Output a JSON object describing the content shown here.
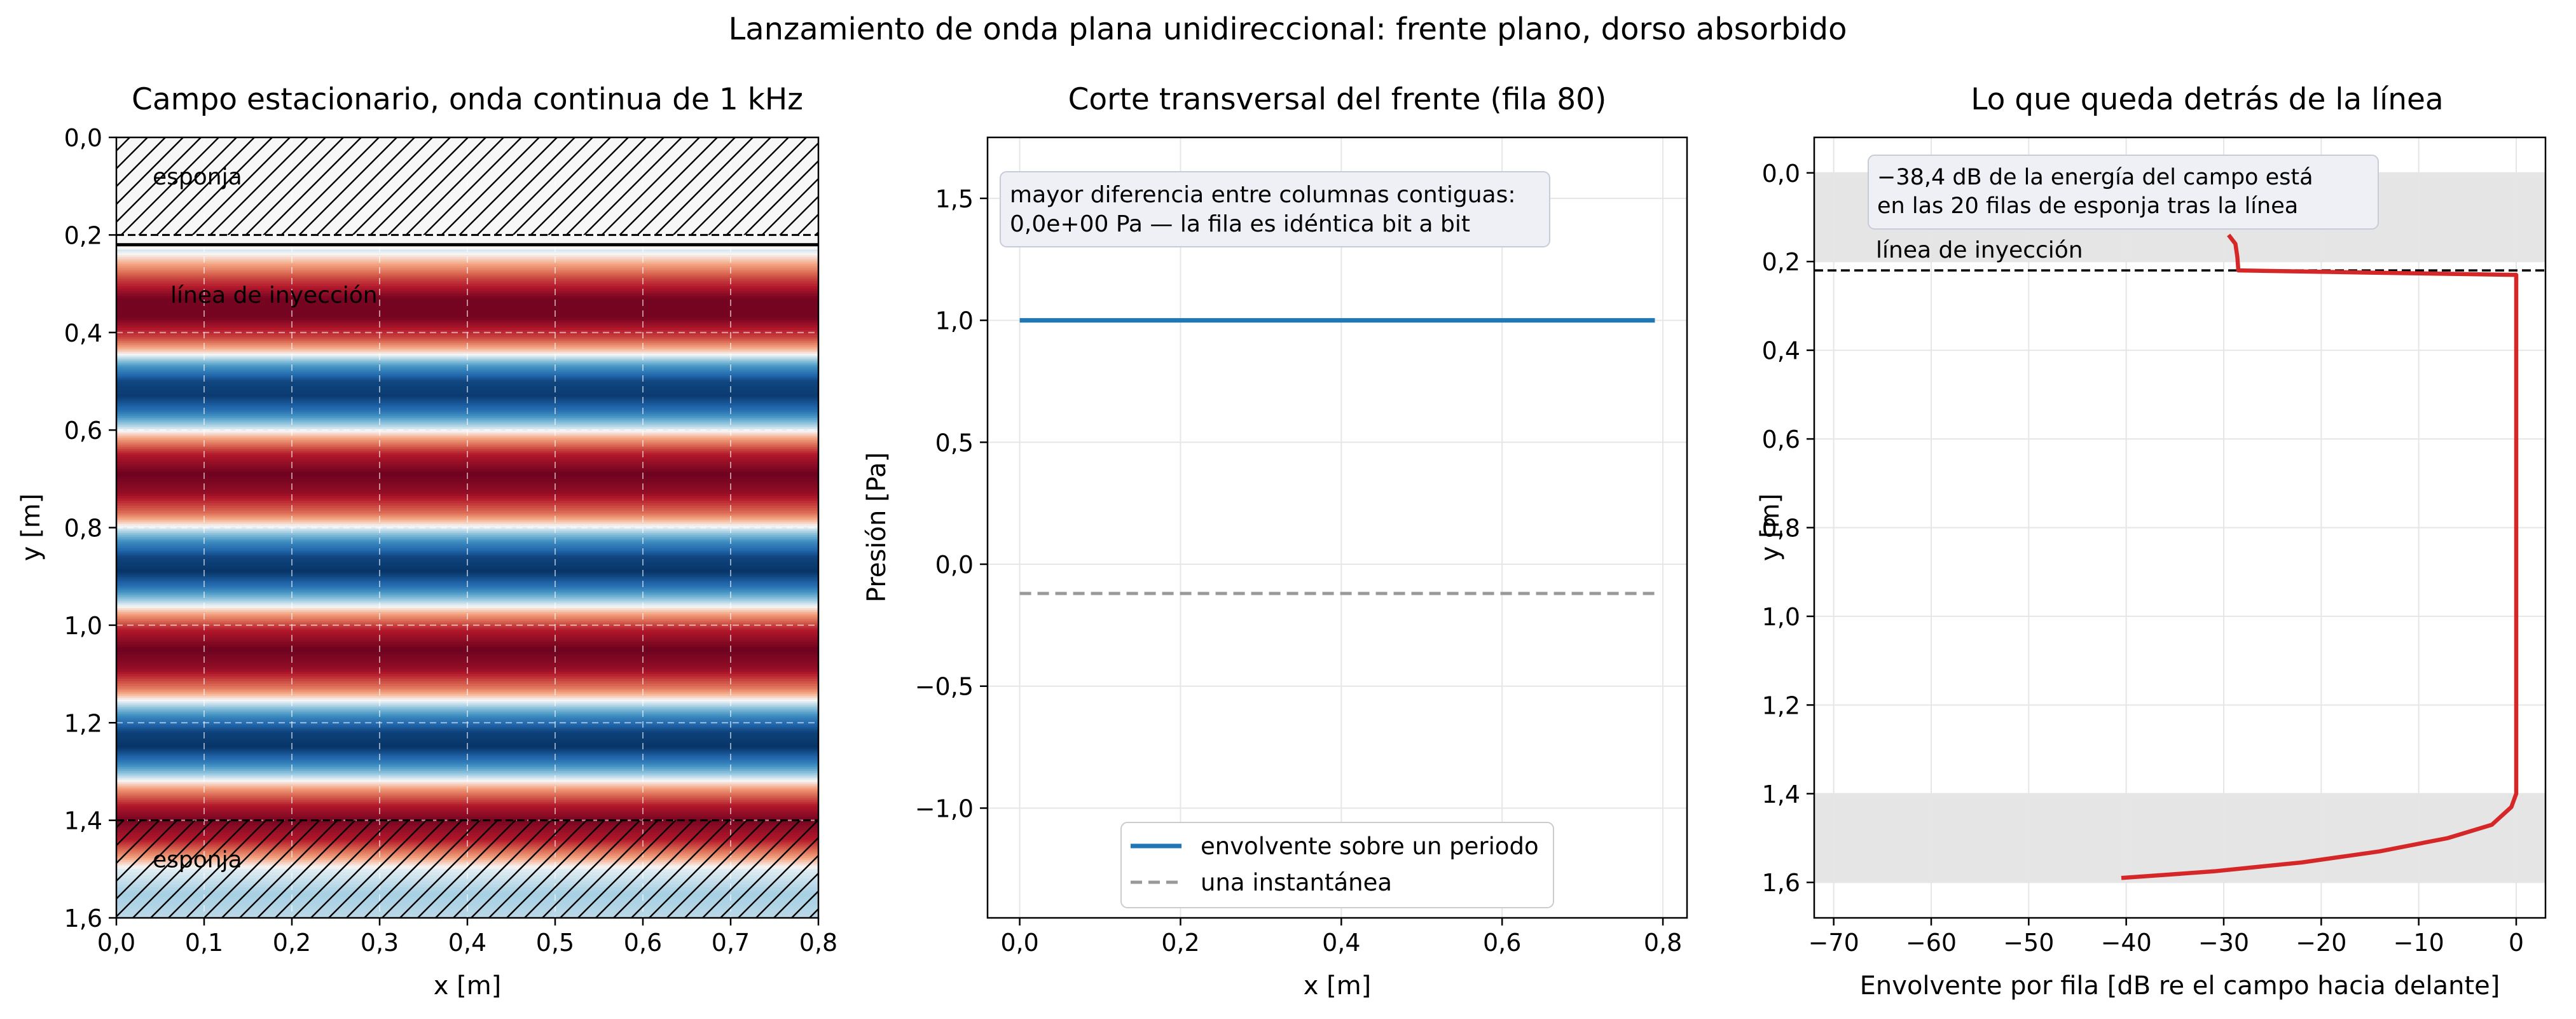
{
  "figure": {
    "suptitle": "Lanzamiento de onda plana unidireccional: frente plano, dorso absorbido"
  },
  "chart_data": [
    {
      "type": "heatmap",
      "title": "Campo estacionario, onda continua de 1 kHz",
      "xlabel": "x [m]",
      "ylabel": "y [m]",
      "xlim": [
        0.0,
        0.8
      ],
      "ylim": [
        1.6,
        0.0
      ],
      "x_ticks": [
        "0,0",
        "0,1",
        "0,2",
        "0,3",
        "0,4",
        "0,5",
        "0,6",
        "0,7",
        "0,8"
      ],
      "y_ticks": [
        "0,0",
        "0,2",
        "0,4",
        "0,6",
        "0,8",
        "1,0",
        "1,2",
        "1,4",
        "1,6"
      ],
      "grid": true,
      "colormap": "RdBu",
      "field_profile": [
        {
          "y": 0.23,
          "v": -0.1
        },
        {
          "y": 0.26,
          "v": 0.25
        },
        {
          "y": 0.29,
          "v": 0.6
        },
        {
          "y": 0.33,
          "v": 0.95
        },
        {
          "y": 0.37,
          "v": 0.95
        },
        {
          "y": 0.41,
          "v": 0.6
        },
        {
          "y": 0.44,
          "v": 0.1
        },
        {
          "y": 0.47,
          "v": -0.5
        },
        {
          "y": 0.5,
          "v": -0.9
        },
        {
          "y": 0.53,
          "v": -0.95
        },
        {
          "y": 0.56,
          "v": -0.7
        },
        {
          "y": 0.59,
          "v": -0.2
        },
        {
          "y": 0.62,
          "v": 0.3
        },
        {
          "y": 0.65,
          "v": 0.75
        },
        {
          "y": 0.69,
          "v": 0.98
        },
        {
          "y": 0.73,
          "v": 0.85
        },
        {
          "y": 0.77,
          "v": 0.45
        },
        {
          "y": 0.8,
          "v": -0.05
        },
        {
          "y": 0.83,
          "v": -0.55
        },
        {
          "y": 0.86,
          "v": -0.9
        },
        {
          "y": 0.89,
          "v": -0.98
        },
        {
          "y": 0.92,
          "v": -0.7
        },
        {
          "y": 0.95,
          "v": -0.2
        },
        {
          "y": 0.98,
          "v": 0.3
        },
        {
          "y": 1.01,
          "v": 0.75
        },
        {
          "y": 1.05,
          "v": 0.98
        },
        {
          "y": 1.09,
          "v": 0.85
        },
        {
          "y": 1.13,
          "v": 0.4
        },
        {
          "y": 1.16,
          "v": -0.1
        },
        {
          "y": 1.19,
          "v": -0.6
        },
        {
          "y": 1.22,
          "v": -0.92
        },
        {
          "y": 1.25,
          "v": -0.98
        },
        {
          "y": 1.28,
          "v": -0.65
        },
        {
          "y": 1.31,
          "v": -0.15
        },
        {
          "y": 1.34,
          "v": 0.35
        },
        {
          "y": 1.37,
          "v": 0.75
        },
        {
          "y": 1.4,
          "v": 0.95
        },
        {
          "y": 1.44,
          "v": 0.75
        },
        {
          "y": 1.47,
          "v": 0.35
        },
        {
          "y": 1.5,
          "v": -0.05
        },
        {
          "y": 1.55,
          "v": -0.2
        },
        {
          "y": 1.6,
          "v": -0.15
        }
      ],
      "top_band_value": 0.0,
      "sponge_regions": [
        {
          "label": "esponja",
          "y0": 0.0,
          "y1": 0.2
        },
        {
          "label": "esponja",
          "y0": 1.4,
          "y1": 1.6
        }
      ],
      "injection_line": {
        "label": "línea de inyección",
        "y": 0.22
      },
      "annotations": [
        "esponja",
        "línea de inyección",
        "esponja"
      ]
    },
    {
      "type": "line",
      "title": "Corte transversal del frente (fila 80)",
      "xlabel": "x [m]",
      "ylabel": "Presión [Pa]",
      "xlim": [
        -0.04,
        0.83
      ],
      "ylim": [
        -1.45,
        1.75
      ],
      "x_ticks": [
        "0,0",
        "0,2",
        "0,4",
        "0,6",
        "0,8"
      ],
      "y_ticks": [
        "−1,0",
        "−0,5",
        "0,0",
        "0,5",
        "1,0",
        "1,5"
      ],
      "grid": true,
      "legend_position": "lower-center",
      "series": [
        {
          "name": "envolvente sobre un periodo",
          "color": "#1f77b4",
          "style": "solid",
          "x": [
            0.0,
            0.79
          ],
          "y": [
            1.0,
            1.0
          ]
        },
        {
          "name": "una instantánea",
          "color": "#999999",
          "style": "dashed",
          "x": [
            0.0,
            0.79
          ],
          "y": [
            -0.12,
            -0.12
          ]
        }
      ],
      "annotation": "mayor diferencia entre columnas contiguas:\n0,0e+00 Pa — la fila es idéntica bit a bit"
    },
    {
      "type": "line",
      "title": "Lo que queda detrás de la línea",
      "xlabel": "Envolvente por fila [dB re el campo hacia delante]",
      "ylabel": "y [m]",
      "xlim": [
        -72,
        3
      ],
      "ylim": [
        1.68,
        -0.08
      ],
      "x_ticks": [
        "−70",
        "−60",
        "−50",
        "−40",
        "−30",
        "−20",
        "−10",
        "0"
      ],
      "y_ticks": [
        "0,0",
        "0,2",
        "0,4",
        "0,6",
        "0,8",
        "1,0",
        "1,2",
        "1,4",
        "1,6"
      ],
      "grid": true,
      "shaded_regions": [
        {
          "y0": 0.0,
          "y1": 0.2
        },
        {
          "y0": 1.4,
          "y1": 1.6
        }
      ],
      "injection_line": {
        "label": "línea de inyección",
        "y": 0.22
      },
      "series": [
        {
          "color": "#d62728",
          "points": [
            [
              -29.5,
              0.14
            ],
            [
              -28.8,
              0.16
            ],
            [
              -28.6,
              0.19
            ],
            [
              -28.5,
              0.22
            ],
            [
              -15,
              0.225
            ],
            [
              0,
              0.23
            ],
            [
              0,
              0.3
            ],
            [
              0,
              1.2
            ],
            [
              0,
              1.4
            ],
            [
              -0.5,
              1.43
            ],
            [
              -2.5,
              1.47
            ],
            [
              -7,
              1.5
            ],
            [
              -14,
              1.53
            ],
            [
              -22,
              1.555
            ],
            [
              -31,
              1.575
            ],
            [
              -36,
              1.583
            ],
            [
              -40.5,
              1.59
            ]
          ]
        }
      ],
      "annotation": "−38,4 dB de la energía del campo está\nen las 20 filas de esponja tras la línea"
    }
  ]
}
